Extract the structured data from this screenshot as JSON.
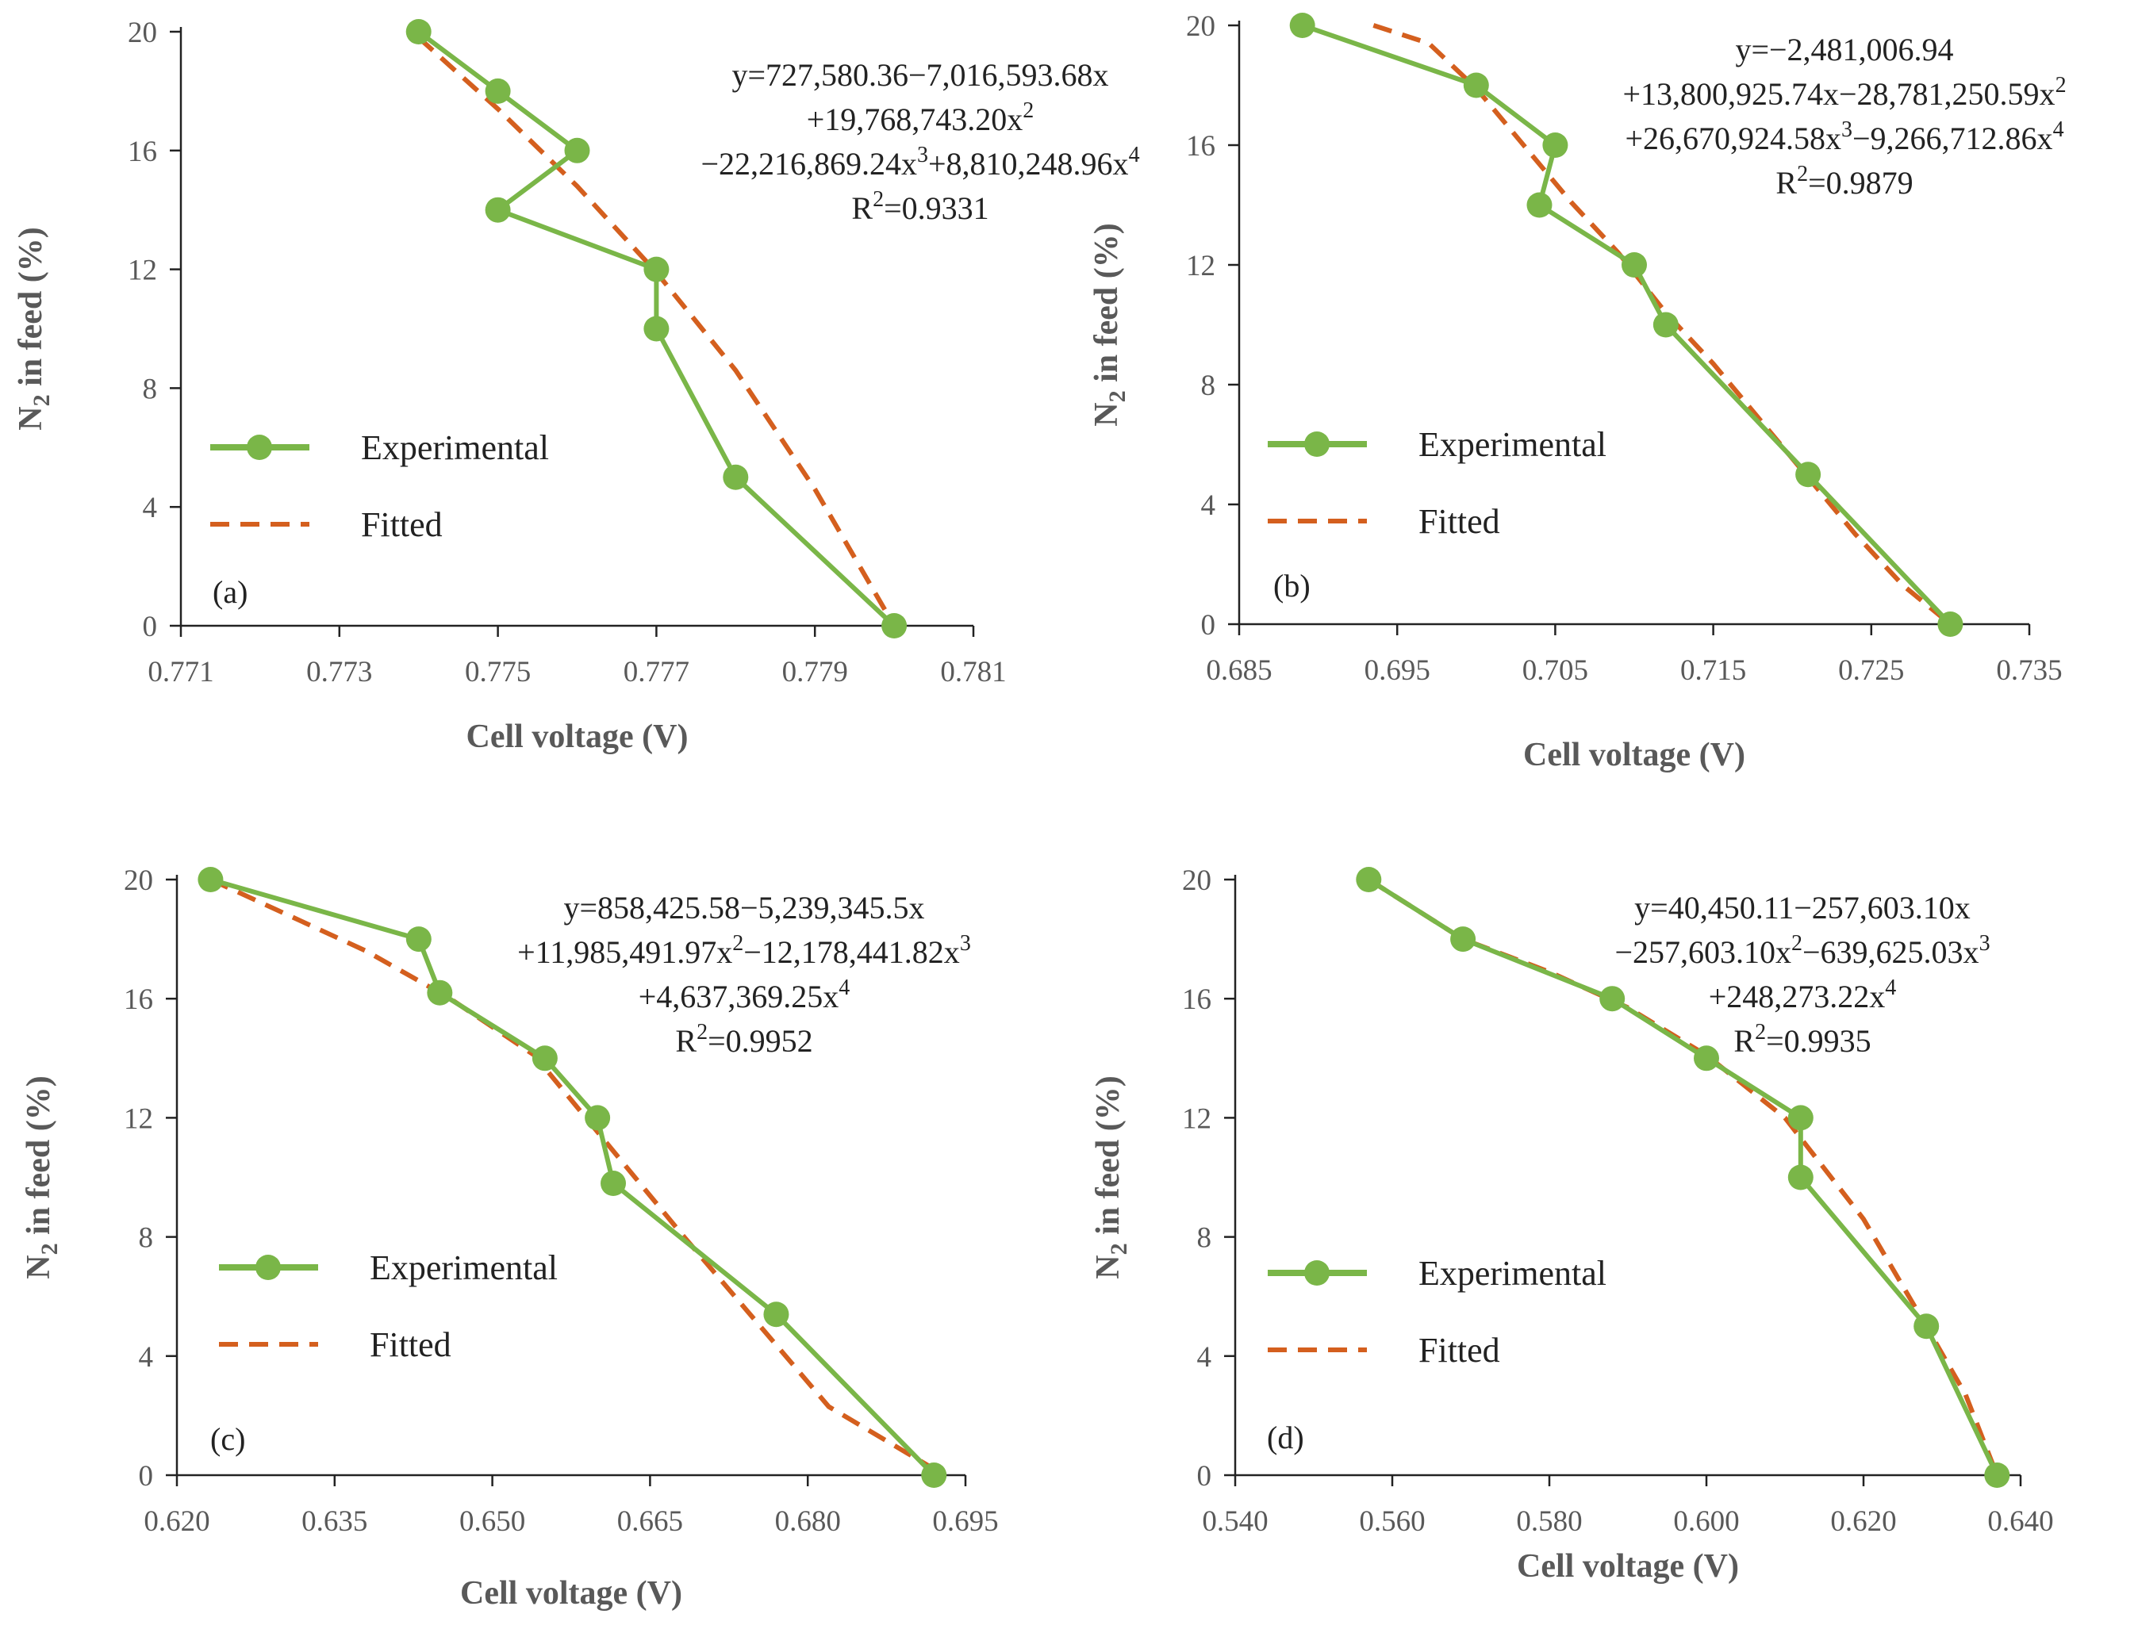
{
  "chart_data": [
    {
      "type": "line",
      "panel_label": "(a)",
      "xlabel": "Cell voltage (V)",
      "ylabel_main": "N",
      "ylabel_sub": "2",
      "ylabel_rest": " in feed (%)",
      "xlim": [
        0.771,
        0.781
      ],
      "ylim": [
        0,
        20
      ],
      "xticks": [
        "0.771",
        "0.773",
        "0.775",
        "0.777",
        "0.779",
        "0.781"
      ],
      "yticks": [
        "0",
        "4",
        "8",
        "12",
        "16",
        "20"
      ],
      "legend": {
        "experimental": "Experimental",
        "fitted": "Fitted"
      },
      "equation_lines": [
        [
          {
            "t": "y=727,580.36−7,016,593.68x"
          }
        ],
        [
          {
            "t": "+19,768,743.20x"
          },
          {
            "t": "2",
            "sup": true
          }
        ],
        [
          {
            "t": "−22,216,869.24x"
          },
          {
            "t": "3",
            "sup": true
          },
          {
            "t": "+8,810,248.96x"
          },
          {
            "t": "4",
            "sup": true
          }
        ],
        [
          {
            "t": "R"
          },
          {
            "t": "2",
            "sup": true
          },
          {
            "t": "=0.9331"
          }
        ]
      ],
      "series": [
        {
          "name": "Experimental",
          "color": "#7ab648",
          "x": [
            0.774,
            0.775,
            0.776,
            0.775,
            0.777,
            0.777,
            0.778,
            0.78
          ],
          "y": [
            20,
            18,
            16,
            14,
            12,
            10,
            5,
            0
          ]
        },
        {
          "name": "Fitted",
          "color": "#d45f1e",
          "x": [
            0.774,
            0.775,
            0.776,
            0.777,
            0.778,
            0.779,
            0.78
          ],
          "y": [
            19.8,
            17.4,
            14.8,
            11.9,
            8.6,
            4.6,
            0.0
          ]
        }
      ]
    },
    {
      "type": "line",
      "panel_label": "(b)",
      "xlabel": "Cell voltage (V)",
      "ylabel_main": "N",
      "ylabel_sub": "2",
      "ylabel_rest": " in feed (%)",
      "xlim": [
        0.685,
        0.735
      ],
      "ylim": [
        0,
        20
      ],
      "xticks": [
        "0.685",
        "0.695",
        "0.705",
        "0.715",
        "0.725",
        "0.735"
      ],
      "yticks": [
        "0",
        "4",
        "8",
        "12",
        "16",
        "20"
      ],
      "legend": {
        "experimental": "Experimental",
        "fitted": "Fitted"
      },
      "equation_lines": [
        [
          {
            "t": "y=−2,481,006.94"
          }
        ],
        [
          {
            "t": "+13,800,925.74x−28,781,250.59x"
          },
          {
            "t": "2",
            "sup": true
          }
        ],
        [
          {
            "t": "+26,670,924.58x"
          },
          {
            "t": "3",
            "sup": true
          },
          {
            "t": "−9,266,712.86x"
          },
          {
            "t": "4",
            "sup": true
          }
        ],
        [
          {
            "t": "R"
          },
          {
            "t": "2",
            "sup": true
          },
          {
            "t": "=0.9879"
          }
        ]
      ],
      "series": [
        {
          "name": "Experimental",
          "color": "#7ab648",
          "x": [
            0.689,
            0.7,
            0.705,
            0.704,
            0.71,
            0.712,
            0.721,
            0.73
          ],
          "y": [
            20,
            18,
            16,
            14,
            12,
            10,
            5,
            0
          ]
        },
        {
          "name": "Fitted",
          "color": "#d45f1e",
          "x": [
            0.6935,
            0.697,
            0.7,
            0.703,
            0.706,
            0.709,
            0.712,
            0.715,
            0.718,
            0.721,
            0.724,
            0.727,
            0.73
          ],
          "y": [
            20.0,
            19.4,
            17.9,
            16.0,
            14.1,
            12.4,
            10.4,
            8.7,
            6.8,
            4.9,
            3.0,
            1.3,
            0.0
          ]
        }
      ]
    },
    {
      "type": "line",
      "panel_label": "(c)",
      "xlabel": "Cell voltage (V)",
      "ylabel_main": "N",
      "ylabel_sub": "2",
      "ylabel_rest": " in feed (%)",
      "xlim": [
        0.62,
        0.695
      ],
      "ylim": [
        0,
        20
      ],
      "xticks": [
        "0.620",
        "0.635",
        "0.650",
        "0.665",
        "0.680",
        "0.695"
      ],
      "yticks": [
        "0",
        "4",
        "8",
        "12",
        "16",
        "20"
      ],
      "legend": {
        "experimental": "Experimental",
        "fitted": "Fitted"
      },
      "equation_lines": [
        [
          {
            "t": "y=858,425.58−5,239,345.5x"
          }
        ],
        [
          {
            "t": "+11,985,491.97x"
          },
          {
            "t": "2",
            "sup": true
          },
          {
            "t": "−12,178,441.82x"
          },
          {
            "t": "3",
            "sup": true
          }
        ],
        [
          {
            "t": "+4,637,369.25x"
          },
          {
            "t": "4",
            "sup": true
          }
        ],
        [
          {
            "t": "R"
          },
          {
            "t": "2",
            "sup": true
          },
          {
            "t": "=0.9952"
          }
        ]
      ],
      "series": [
        {
          "name": "Experimental",
          "color": "#7ab648",
          "x": [
            0.6232,
            0.643,
            0.645,
            0.655,
            0.66,
            0.6615,
            0.677,
            0.692
          ],
          "y": [
            20,
            18,
            16.2,
            14,
            12,
            9.8,
            5.4,
            0
          ]
        },
        {
          "name": "Fitted",
          "color": "#d45f1e",
          "x": [
            0.6232,
            0.63,
            0.638,
            0.646,
            0.654,
            0.661,
            0.668,
            0.675,
            0.682,
            0.693
          ],
          "y": [
            20.0,
            18.9,
            17.6,
            16.0,
            14.1,
            11.1,
            8.1,
            5.2,
            2.3,
            0.0
          ]
        }
      ]
    },
    {
      "type": "line",
      "panel_label": "(d)",
      "xlabel": "Cell voltage (V)",
      "ylabel_main": "N",
      "ylabel_sub": "2",
      "ylabel_rest": " in feed (%)",
      "xlim": [
        0.54,
        0.64
      ],
      "ylim": [
        0,
        20
      ],
      "xticks": [
        "0.540",
        "0.560",
        "0.580",
        "0.600",
        "0.620",
        "0.640"
      ],
      "yticks": [
        "0",
        "4",
        "8",
        "12",
        "16",
        "20"
      ],
      "legend": {
        "experimental": "Experimental",
        "fitted": "Fitted"
      },
      "equation_lines": [
        [
          {
            "t": "y=40,450.11−257,603.10x"
          }
        ],
        [
          {
            "t": "−257,603.10x"
          },
          {
            "t": "2",
            "sup": true
          },
          {
            "t": "−639,625.03x"
          },
          {
            "t": "3",
            "sup": true
          }
        ],
        [
          {
            "t": "+248,273.22x"
          },
          {
            "t": "4",
            "sup": true
          }
        ],
        [
          {
            "t": "R"
          },
          {
            "t": "2",
            "sup": true
          },
          {
            "t": "=0.9935"
          }
        ]
      ],
      "series": [
        {
          "name": "Experimental",
          "color": "#7ab648",
          "x": [
            0.557,
            0.569,
            0.588,
            0.6,
            0.612,
            0.612,
            0.628,
            0.637
          ],
          "y": [
            20,
            18,
            16,
            14,
            12,
            10,
            5,
            0
          ]
        },
        {
          "name": "Fitted",
          "color": "#d45f1e",
          "x": [
            0.557,
            0.569,
            0.58,
            0.59,
            0.6,
            0.61,
            0.62,
            0.628,
            0.633,
            0.637
          ],
          "y": [
            20.0,
            18.0,
            16.9,
            15.7,
            14.1,
            12.0,
            8.6,
            5.0,
            2.7,
            0.0
          ]
        }
      ]
    }
  ]
}
